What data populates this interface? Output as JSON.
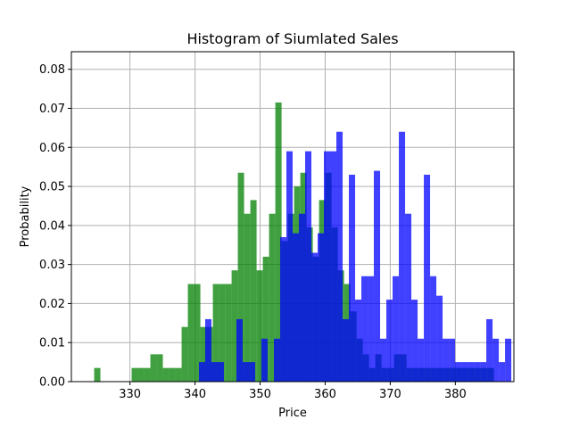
{
  "chart_data": {
    "type": "histogram",
    "title": "Histogram of Siumlated Sales",
    "xlabel": "Price",
    "ylabel": "Probability",
    "xlim": [
      321,
      389
    ],
    "ylim": [
      0,
      0.0845
    ],
    "xticks": [
      330,
      340,
      350,
      360,
      370,
      380
    ],
    "yticks": [
      0.0,
      0.01,
      0.02,
      0.03,
      0.04,
      0.05,
      0.06,
      0.07,
      0.08
    ],
    "grid": true,
    "series": [
      {
        "color": "#008000",
        "opacity": 0.75,
        "bin_start": 324.5,
        "bin_width": 0.96,
        "values": [
          0.0035,
          0,
          0,
          0,
          0,
          0,
          0.0035,
          0.0035,
          0.0035,
          0.007,
          0.007,
          0.0035,
          0.0035,
          0.0035,
          0.014,
          0.025,
          0.025,
          0.014,
          0.014,
          0.025,
          0.025,
          0.025,
          0.0285,
          0.0535,
          0.043,
          0.0465,
          0.0285,
          0.032,
          0.043,
          0.0715,
          0.036,
          0.043,
          0.05,
          0.0535,
          0.0395,
          0.032,
          0.0465,
          0.0535,
          0.0395,
          0.0285,
          0.025,
          0.018,
          0.011,
          0.007,
          0.0035,
          0.007,
          0.0035,
          0.0035,
          0.007,
          0.007,
          0.0035,
          0.0035,
          0.0035,
          0.0035,
          0.0035,
          0.0035,
          0.0035,
          0.0035,
          0.0035,
          0.0035,
          0.0035,
          0.0035,
          0.0035,
          0.0035
        ]
      },
      {
        "color": "#0000ff",
        "opacity": 0.75,
        "bin_start": 340.6,
        "bin_width": 0.96,
        "values": [
          0.005,
          0.016,
          0.005,
          0.005,
          0,
          0,
          0.016,
          0.005,
          0.005,
          0,
          0.011,
          0,
          0.011,
          0.037,
          0.059,
          0.038,
          0.043,
          0.059,
          0.033,
          0.038,
          0.059,
          0.059,
          0.064,
          0.016,
          0.053,
          0.021,
          0.027,
          0.027,
          0.054,
          0.011,
          0.021,
          0.027,
          0.064,
          0.043,
          0.021,
          0.011,
          0.053,
          0.027,
          0.022,
          0.011,
          0.011,
          0.005,
          0.005,
          0.005,
          0.005,
          0.005,
          0.016,
          0.011,
          0.005,
          0.011,
          0.0,
          0.0,
          0.0,
          0.0,
          0.0,
          0.0,
          0.0,
          0.0,
          0.0,
          0.0,
          0.0,
          0.0,
          0.0,
          0.005
        ]
      }
    ]
  }
}
